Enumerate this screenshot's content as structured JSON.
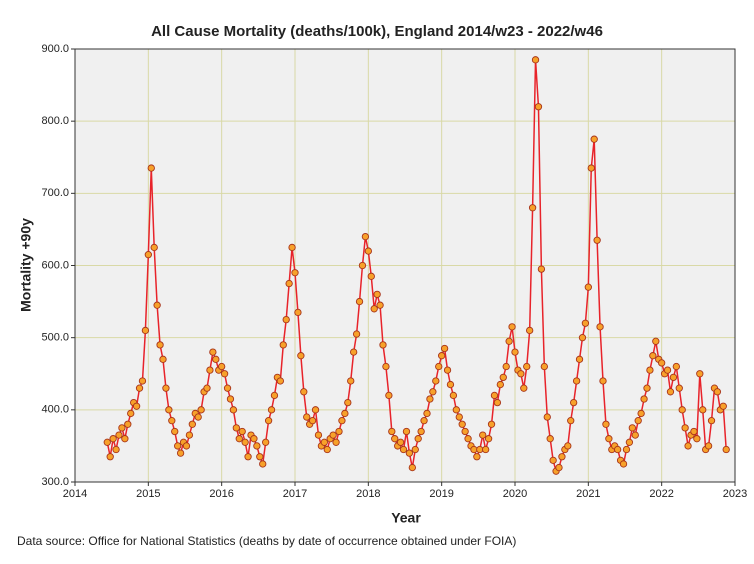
{
  "chart_data": {
    "type": "line",
    "title": "All Cause Mortality (deaths/100k), England 2014/w23 - 2022/w46",
    "x_label": "Year",
    "y_label": "Mortality +90y",
    "note": "Data source: Office for National Statistics (deaths by date of occurrence obtained under FOIA)",
    "xlim": [
      2014,
      2023
    ],
    "xticks": [
      2014,
      2015,
      2016,
      2017,
      2018,
      2019,
      2020,
      2021,
      2022,
      2023
    ],
    "ylim": [
      300,
      900
    ],
    "yticks": [
      {
        "value": 300,
        "label": "300.0"
      },
      {
        "value": 400,
        "label": "400.0"
      },
      {
        "value": 500,
        "label": "500.0"
      },
      {
        "value": 600,
        "label": "600.0"
      },
      {
        "value": 700,
        "label": "700.0"
      },
      {
        "value": 800,
        "label": "800.0"
      },
      {
        "value": 900,
        "label": "900.0"
      }
    ],
    "grid": true,
    "x": [
      2014.44,
      2014.48,
      2014.52,
      2014.56,
      2014.6,
      2014.64,
      2014.68,
      2014.72,
      2014.76,
      2014.8,
      2014.84,
      2014.88,
      2014.92,
      2014.96,
      2015.0,
      2015.04,
      2015.08,
      2015.12,
      2015.16,
      2015.2,
      2015.24,
      2015.28,
      2015.32,
      2015.36,
      2015.4,
      2015.44,
      2015.48,
      2015.52,
      2015.56,
      2015.6,
      2015.64,
      2015.68,
      2015.72,
      2015.76,
      2015.8,
      2015.84,
      2015.88,
      2015.92,
      2015.96,
      2016.0,
      2016.04,
      2016.08,
      2016.12,
      2016.16,
      2016.2,
      2016.24,
      2016.28,
      2016.32,
      2016.36,
      2016.4,
      2016.44,
      2016.48,
      2016.52,
      2016.56,
      2016.6,
      2016.64,
      2016.68,
      2016.72,
      2016.76,
      2016.8,
      2016.84,
      2016.88,
      2016.92,
      2016.96,
      2017.0,
      2017.04,
      2017.08,
      2017.12,
      2017.16,
      2017.2,
      2017.24,
      2017.28,
      2017.32,
      2017.36,
      2017.4,
      2017.44,
      2017.48,
      2017.52,
      2017.56,
      2017.6,
      2017.64,
      2017.68,
      2017.72,
      2017.76,
      2017.8,
      2017.84,
      2017.88,
      2017.92,
      2017.96,
      2018.0,
      2018.04,
      2018.08,
      2018.12,
      2018.16,
      2018.2,
      2018.24,
      2018.28,
      2018.32,
      2018.36,
      2018.4,
      2018.44,
      2018.48,
      2018.52,
      2018.56,
      2018.6,
      2018.64,
      2018.68,
      2018.72,
      2018.76,
      2018.8,
      2018.84,
      2018.88,
      2018.92,
      2018.96,
      2019.0,
      2019.04,
      2019.08,
      2019.12,
      2019.16,
      2019.2,
      2019.24,
      2019.28,
      2019.32,
      2019.36,
      2019.4,
      2019.44,
      2019.48,
      2019.52,
      2019.56,
      2019.6,
      2019.64,
      2019.68,
      2019.72,
      2019.76,
      2019.8,
      2019.84,
      2019.88,
      2019.92,
      2019.96,
      2020.0,
      2020.04,
      2020.08,
      2020.12,
      2020.16,
      2020.2,
      2020.24,
      2020.28,
      2020.32,
      2020.36,
      2020.4,
      2020.44,
      2020.48,
      2020.52,
      2020.56,
      2020.6,
      2020.64,
      2020.68,
      2020.72,
      2020.76,
      2020.8,
      2020.84,
      2020.88,
      2020.92,
      2020.96,
      2021.0,
      2021.04,
      2021.08,
      2021.12,
      2021.16,
      2021.2,
      2021.24,
      2021.28,
      2021.32,
      2021.36,
      2021.4,
      2021.44,
      2021.48,
      2021.52,
      2021.56,
      2021.6,
      2021.64,
      2021.68,
      2021.72,
      2021.76,
      2021.8,
      2021.84,
      2021.88,
      2021.92,
      2021.96,
      2022.0,
      2022.04,
      2022.08,
      2022.12,
      2022.16,
      2022.2,
      2022.24,
      2022.28,
      2022.32,
      2022.36,
      2022.4,
      2022.44,
      2022.48,
      2022.52,
      2022.56,
      2022.6,
      2022.64,
      2022.68,
      2022.72,
      2022.76,
      2022.8,
      2022.84,
      2022.88
    ],
    "series": [
      {
        "color": "#e8232a",
        "marker_color": "#f7a12a",
        "values": [
          355,
          335,
          360,
          345,
          365,
          375,
          360,
          380,
          395,
          410,
          405,
          430,
          440,
          510,
          615,
          735,
          625,
          545,
          490,
          470,
          430,
          400,
          385,
          370,
          350,
          340,
          355,
          350,
          365,
          380,
          395,
          390,
          400,
          425,
          430,
          455,
          480,
          470,
          455,
          460,
          450,
          430,
          415,
          400,
          375,
          360,
          370,
          355,
          335,
          365,
          360,
          350,
          335,
          325,
          355,
          385,
          400,
          420,
          445,
          440,
          490,
          525,
          575,
          625,
          590,
          535,
          475,
          425,
          390,
          380,
          385,
          400,
          365,
          350,
          355,
          345,
          360,
          365,
          355,
          370,
          385,
          395,
          410,
          440,
          480,
          505,
          550,
          600,
          640,
          620,
          585,
          540,
          560,
          545,
          490,
          460,
          420,
          370,
          360,
          350,
          355,
          345,
          370,
          340,
          320,
          345,
          360,
          370,
          385,
          395,
          415,
          425,
          440,
          460,
          475,
          485,
          455,
          435,
          420,
          400,
          390,
          380,
          370,
          360,
          350,
          345,
          335,
          345,
          365,
          345,
          360,
          380,
          420,
          410,
          435,
          445,
          460,
          495,
          515,
          480,
          455,
          450,
          430,
          460,
          510,
          680,
          885,
          820,
          595,
          460,
          390,
          360,
          330,
          315,
          320,
          335,
          345,
          350,
          385,
          410,
          440,
          470,
          500,
          520,
          570,
          735,
          775,
          635,
          515,
          440,
          380,
          360,
          345,
          350,
          345,
          330,
          325,
          345,
          355,
          375,
          365,
          385,
          395,
          415,
          430,
          455,
          475,
          495,
          470,
          465,
          450,
          455,
          425,
          445,
          460,
          430,
          400,
          375,
          350,
          365,
          370,
          360,
          450,
          400,
          345,
          350,
          385,
          430,
          425,
          400,
          405,
          345
        ]
      }
    ]
  }
}
